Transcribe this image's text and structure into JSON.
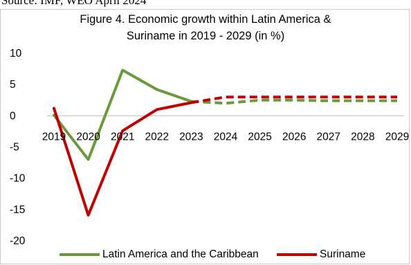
{
  "source_text": "Source: IMF, WEO April 2024",
  "chart_data": {
    "type": "line",
    "title_lines": [
      "Figure 4. Economic growth within Latin America &",
      "Suriname in 2019 - 2029 (in %)"
    ],
    "xlabel": "",
    "ylabel": "",
    "categories": [
      "2019",
      "2020",
      "2021",
      "2022",
      "2023",
      "2024",
      "2025",
      "2026",
      "2027",
      "2028",
      "2029"
    ],
    "ylim": [
      -20,
      10
    ],
    "yticks": [
      10,
      5,
      0,
      -5,
      -10,
      -15,
      -20
    ],
    "grid": false,
    "legend_position": "bottom",
    "series": [
      {
        "name": "Latin America and the Caribbean",
        "color": "#6a9a3c",
        "values": [
          0.1,
          -7.0,
          7.3,
          4.2,
          2.3,
          2.0,
          2.5,
          2.5,
          2.4,
          2.4,
          2.4
        ],
        "solid_through_index": 4
      },
      {
        "name": "Suriname",
        "color": "#c00000",
        "values": [
          1.2,
          -15.9,
          -2.4,
          1.0,
          2.1,
          3.0,
          3.0,
          3.0,
          3.0,
          3.0,
          3.0
        ],
        "solid_through_index": 4
      }
    ]
  }
}
